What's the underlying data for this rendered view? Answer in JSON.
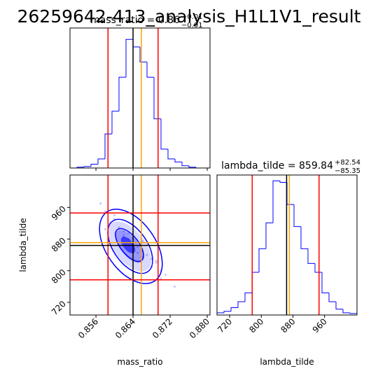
{
  "chart_data": {
    "type": "corner",
    "title": "26259642-413_analysis_H1L1V1_result",
    "params": [
      {
        "name": "mass_ratio",
        "subtitle": "mass_ratio = 0.86",
        "upper": "+0.01",
        "lower": "−0.01",
        "xlim": [
          0.8504,
          0.8806
        ],
        "xticks": [
          0.856,
          0.864,
          0.872,
          {
            "value": 0.88,
            "label": "0.880"
          }
        ],
        "bins": [
          0.8504,
          0.85191,
          0.85342,
          0.85493,
          0.85644,
          0.85795,
          0.85946,
          0.86097,
          0.86248,
          0.86399,
          0.8655,
          0.86701,
          0.86852,
          0.87003,
          0.87154,
          0.87305,
          0.87456,
          0.87607,
          0.87758,
          0.87909,
          0.8806
        ],
        "counts": [
          0,
          1,
          2,
          5,
          12,
          45,
          75,
          120,
          170,
          160,
          140,
          120,
          65,
          25,
          12,
          8,
          3,
          1,
          0,
          0
        ],
        "ylim": [
          0,
          185
        ],
        "lines": [
          {
            "value": 0.8586,
            "color": "#ff0000"
          },
          {
            "value": 0.864,
            "color": "#000000"
          },
          {
            "value": 0.8658,
            "color": "#ffa500"
          },
          {
            "value": 0.8694,
            "color": "#ff0000"
          }
        ]
      },
      {
        "name": "lambda_tilde",
        "subtitle": "lambda_tilde = 859.84",
        "upper": "+82.54",
        "lower": "−85.35",
        "xlim": [
          688,
          1042
        ],
        "xticks": [
          720,
          800,
          880,
          960
        ],
        "bins": [
          688,
          705.7,
          723.4,
          741.1,
          758.8,
          776.5,
          794.2,
          811.9,
          829.6,
          847.3,
          865,
          882.7,
          900.4,
          918.1,
          935.8,
          953.5,
          971.2,
          988.9,
          1006.6,
          1024.3,
          1042
        ],
        "counts": [
          3,
          5,
          10,
          18,
          30,
          58,
          90,
          125,
          182,
          180,
          150,
          120,
          90,
          70,
          58,
          30,
          18,
          8,
          3,
          2
        ],
        "ylim": [
          0,
          190
        ],
        "lines": [
          {
            "value": 777,
            "color": "#ff0000"
          },
          {
            "value": 864,
            "color": "#000000"
          },
          {
            "value": 871,
            "color": "#ffa500"
          },
          {
            "value": 946,
            "color": "#ff0000"
          }
        ]
      }
    ],
    "hist_color": "#0000ff",
    "scatter": {
      "color": "#8888ff",
      "x": [
        0.862,
        0.866,
        0.868,
        0.86,
        0.864,
        0.87,
        0.858,
        0.863,
        0.867,
        0.865,
        0.861,
        0.869,
        0.859,
        0.866,
        0.864,
        0.871,
        0.857,
        0.862,
        0.868,
        0.873,
        0.86,
        0.865,
        0.863,
        0.867,
        0.87,
        0.858,
        0.866,
        0.862,
        0.864,
        0.869
      ],
      "y": [
        890,
        850,
        830,
        930,
        870,
        800,
        950,
        880,
        840,
        860,
        910,
        820,
        920,
        875,
        855,
        790,
        970,
        900,
        810,
        760,
        940,
        845,
        895,
        865,
        780,
        905,
        835,
        885,
        880,
        825
      ]
    }
  }
}
